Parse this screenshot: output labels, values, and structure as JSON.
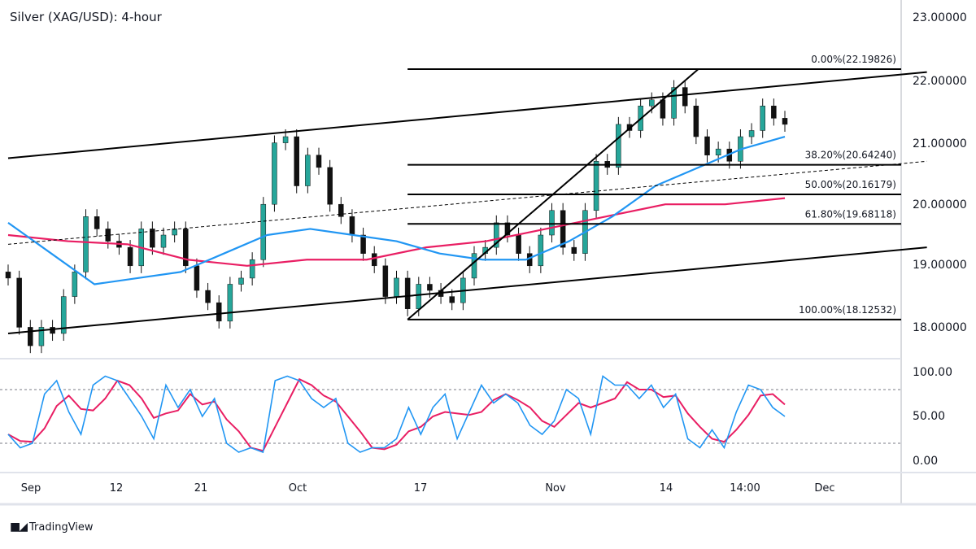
{
  "title": "Silver (XAG/USD): 4-hour",
  "brand": {
    "logo": "TV",
    "name": "TradingView"
  },
  "colors": {
    "bull": "#26a69a",
    "bear": "#111111",
    "ma_fast": "#2196f3",
    "ma_slow": "#e91e63",
    "stoch_k": "#2196f3",
    "stoch_d": "#e91e63",
    "lines": "#000000"
  },
  "chart_data": {
    "type": "candlestick",
    "title": "Silver (XAG/USD): 4-hour",
    "x_ticks": [
      "Sep",
      "12",
      "21",
      "Oct",
      "17",
      "Nov",
      "14",
      "14:00",
      "Dec"
    ],
    "y_ticks": [
      "23.00000",
      "22.00000",
      "21.00000",
      "20.00000",
      "19.00000",
      "18.00000"
    ],
    "ylim": [
      17.5,
      23.1
    ],
    "closes": [
      18.8,
      18.0,
      17.7,
      18.0,
      17.9,
      18.5,
      18.9,
      19.8,
      19.6,
      19.4,
      19.3,
      19.0,
      19.6,
      19.3,
      19.5,
      19.6,
      19.0,
      18.6,
      18.4,
      18.1,
      18.7,
      18.8,
      19.1,
      20.0,
      21.0,
      21.1,
      20.3,
      20.8,
      20.6,
      20.0,
      19.8,
      19.5,
      19.2,
      19.0,
      18.5,
      18.8,
      18.3,
      18.7,
      18.6,
      18.5,
      18.4,
      18.8,
      19.2,
      19.3,
      19.7,
      19.5,
      19.2,
      19.0,
      19.5,
      19.9,
      19.3,
      19.2,
      19.9,
      20.7,
      20.6,
      21.3,
      21.2,
      21.6,
      21.7,
      21.4,
      21.9,
      21.6,
      21.1,
      20.8,
      20.9,
      20.7,
      21.1,
      21.2,
      21.6,
      21.4,
      21.3
    ],
    "ma_fast": [
      19.7,
      19.2,
      18.7,
      18.8,
      18.9,
      19.2,
      19.5,
      19.6,
      19.5,
      19.4,
      19.2,
      19.1,
      19.1,
      19.4,
      19.8,
      20.3,
      20.6,
      20.9,
      21.1
    ],
    "ma_slow": [
      19.5,
      19.4,
      19.35,
      19.1,
      19.0,
      19.1,
      19.1,
      19.3,
      19.4,
      19.6,
      19.8,
      20.0,
      20.0,
      20.1
    ],
    "channel": {
      "upper": [
        [
          0,
          20.75
        ],
        [
          82.8,
          22.15
        ]
      ],
      "lower": [
        [
          0,
          17.9
        ],
        [
          82.8,
          19.3
        ]
      ],
      "mid_dashed": [
        [
          0,
          19.35
        ],
        [
          82.8,
          20.7
        ]
      ]
    },
    "fib_trend": [
      [
        36,
        18.12532
      ],
      [
        62.2,
        22.19826
      ]
    ],
    "fib_range": [
      36,
      82.8
    ],
    "fib_levels": [
      {
        "label": "0.00%(22.19826)",
        "value": 22.19826
      },
      {
        "label": "38.20%(20.64240)",
        "value": 20.6424
      },
      {
        "label": "50.00%(20.16179)",
        "value": 20.16179
      },
      {
        "label": "61.80%(19.68118)",
        "value": 19.68118
      },
      {
        "label": "100.00%(18.12532)",
        "value": 18.12532
      }
    ],
    "stochastic": {
      "y_ticks": [
        "100.00",
        "50.00",
        "0.00"
      ],
      "levels": [
        80,
        20
      ],
      "k": [
        30,
        15,
        20,
        75,
        90,
        55,
        30,
        85,
        95,
        90,
        70,
        50,
        25,
        85,
        60,
        80,
        50,
        70,
        20,
        10,
        15,
        10,
        90,
        95,
        90,
        70,
        60,
        70,
        20,
        10,
        15,
        15,
        25,
        60,
        30,
        60,
        75,
        25,
        55,
        85,
        65,
        75,
        65,
        40,
        30,
        45,
        80,
        70,
        30,
        95,
        85,
        85,
        70,
        85,
        60,
        75,
        25,
        15,
        35,
        15,
        55,
        85,
        80,
        60,
        50
      ]
    }
  }
}
